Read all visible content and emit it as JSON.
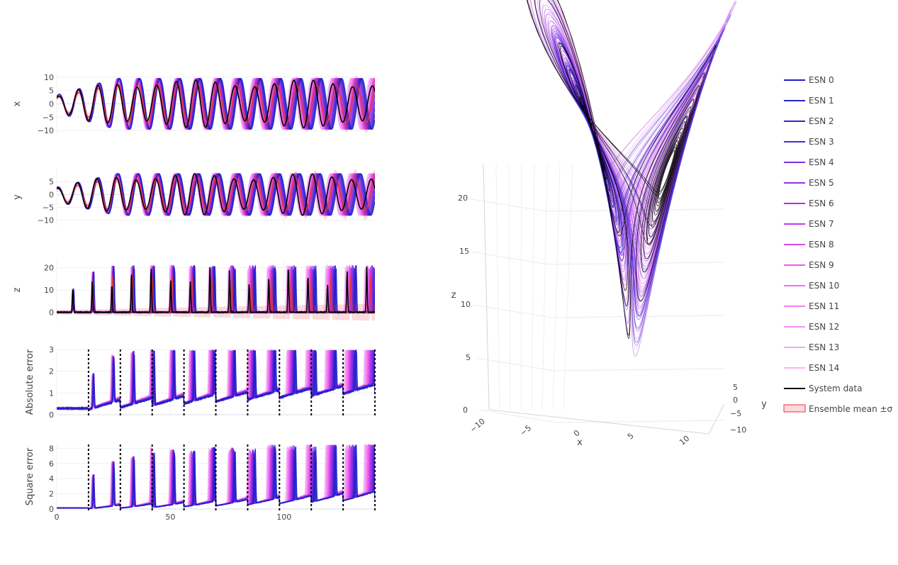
{
  "chart_data": [
    {
      "type": "line",
      "panel": "x",
      "ylabel": "x",
      "yticks": [
        "10",
        "5",
        "0",
        "−5",
        "−10"
      ],
      "ytick_values": [
        10,
        5,
        0,
        -5,
        -10
      ],
      "ylim": [
        -11,
        11
      ],
      "xlim": [
        0,
        140
      ],
      "approx_peak_amplitude": 9.5
    },
    {
      "type": "line",
      "panel": "y",
      "ylabel": "y",
      "yticks": [
        "5",
        "0",
        "−5",
        "−10"
      ],
      "ytick_values": [
        5,
        0,
        -5,
        -10
      ],
      "ylim": [
        -12,
        10
      ],
      "xlim": [
        0,
        140
      ],
      "approx_peak_amplitude": 8
    },
    {
      "type": "line",
      "panel": "z",
      "ylabel": "z",
      "yticks": [
        "20",
        "10",
        "0"
      ],
      "ytick_values": [
        20,
        10,
        0
      ],
      "ylim": [
        -4,
        24
      ],
      "xlim": [
        0,
        140
      ],
      "approx_peak_value": 21
    },
    {
      "type": "line",
      "panel": "abs_error",
      "ylabel": "Absolute error",
      "yticks": [
        "3",
        "2",
        "1",
        "0"
      ],
      "ytick_values": [
        3,
        2,
        1,
        0
      ],
      "ylim": [
        0,
        3
      ],
      "xlim": [
        0,
        140
      ],
      "vlines": [
        14,
        28,
        42,
        56,
        70,
        84,
        98,
        112,
        126,
        140
      ]
    },
    {
      "type": "line",
      "panel": "sq_error",
      "ylabel": "Square error",
      "yticks": [
        "8",
        "6",
        "4",
        "2",
        "0"
      ],
      "ytick_values": [
        8,
        6,
        4,
        2,
        0
      ],
      "ylim": [
        0,
        8.5
      ],
      "xlim": [
        0,
        140
      ],
      "xticks": [
        "0",
        "50",
        "100"
      ],
      "xtick_values": [
        0,
        50,
        100
      ],
      "vlines": [
        14,
        28,
        42,
        56,
        70,
        84,
        98,
        112,
        126,
        140
      ]
    },
    {
      "type": "scatter3d",
      "panel": "attractor",
      "xlabel": "x",
      "ylabel": "y",
      "zlabel": "z",
      "xticks": [
        "−10",
        "−5",
        "0",
        "5",
        "10"
      ],
      "yticks": [
        "5",
        "0",
        "−5",
        "−10"
      ],
      "zticks": [
        "0",
        "5",
        "10",
        "15",
        "20"
      ]
    }
  ],
  "legend": [
    {
      "label": "ESN 0",
      "color": "#1f1fc8"
    },
    {
      "label": "ESN 1",
      "color": "#2424c8"
    },
    {
      "label": "ESN 2",
      "color": "#3a1fd6"
    },
    {
      "label": "ESN 3",
      "color": "#5522d8"
    },
    {
      "label": "ESN 4",
      "color": "#7a2ee0"
    },
    {
      "label": "ESN 5",
      "color": "#9230e6"
    },
    {
      "label": "ESN 6",
      "color": "#ad2fe8"
    },
    {
      "label": "ESN 7",
      "color": "#c53ae8"
    },
    {
      "label": "ESN 8",
      "color": "#d94aea"
    },
    {
      "label": "ESN 9",
      "color": "#e65bee"
    },
    {
      "label": "ESN 10",
      "color": "#f06ef2"
    },
    {
      "label": "ESN 11",
      "color": "#f47ff2"
    },
    {
      "label": "ESN 12",
      "color": "#f591f3"
    },
    {
      "label": "ESN 13",
      "color": "#f6a4f3"
    },
    {
      "label": "ESN 14",
      "color": "#f7b6f5"
    },
    {
      "label": "System data",
      "color": "#000000"
    },
    {
      "label": "Ensemble mean ±σ",
      "color": "#e8323c"
    }
  ]
}
